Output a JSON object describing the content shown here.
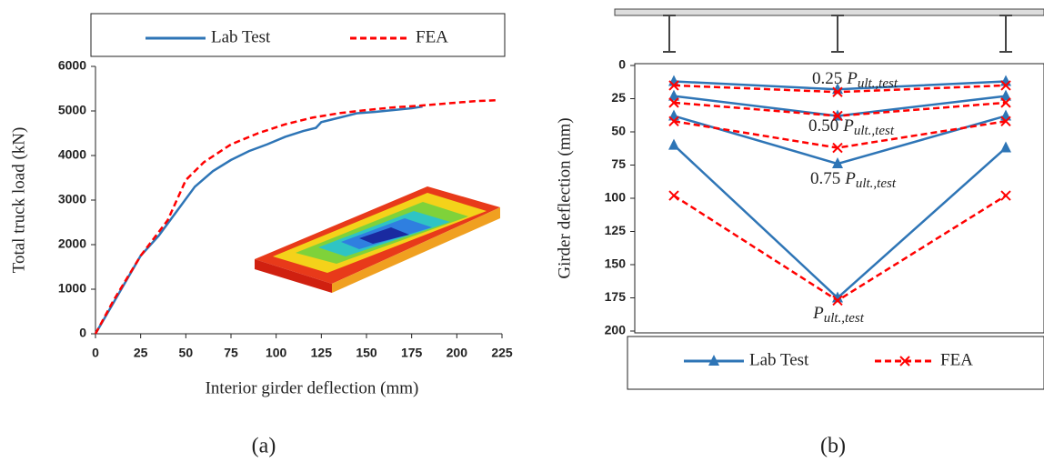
{
  "chart_data": [
    {
      "type": "line",
      "caption": "(a)",
      "xlabel": "Interior girder deflection (mm)",
      "ylabel": "Total truck load (kN)",
      "xlim": [
        0,
        225
      ],
      "xticks": [
        0,
        25,
        50,
        75,
        100,
        125,
        150,
        175,
        200,
        225
      ],
      "ylim": [
        0,
        6000
      ],
      "yticks": [
        0,
        1000,
        2000,
        3000,
        4000,
        5000,
        6000
      ],
      "legend": "top",
      "series": [
        {
          "name": "Lab Test",
          "color": "#2e75b6",
          "dash": false,
          "x": [
            0,
            10,
            20,
            25,
            35,
            45,
            55,
            65,
            75,
            85,
            95,
            105,
            115,
            122,
            125,
            135,
            145,
            155,
            165,
            175,
            181
          ],
          "values": [
            0,
            700,
            1400,
            1750,
            2200,
            2750,
            3300,
            3650,
            3900,
            4100,
            4250,
            4420,
            4550,
            4620,
            4750,
            4850,
            4950,
            4980,
            5020,
            5060,
            5100
          ]
        },
        {
          "name": "FEA",
          "color": "#ff0000",
          "dash": true,
          "x": [
            0,
            10,
            25,
            40,
            50,
            60,
            75,
            90,
            105,
            120,
            135,
            150,
            165,
            180,
            195,
            210,
            222
          ],
          "values": [
            0,
            750,
            1750,
            2550,
            3450,
            3850,
            4250,
            4500,
            4700,
            4850,
            4950,
            5020,
            5080,
            5120,
            5170,
            5220,
            5240
          ]
        }
      ]
    },
    {
      "type": "line",
      "caption": "(b)",
      "ylabel": "Girder deflection (mm)",
      "categories": [
        null,
        null,
        null
      ],
      "ylim": [
        0,
        200
      ],
      "y_inverted": true,
      "yticks": [
        0,
        25,
        50,
        75,
        100,
        125,
        150,
        175,
        200
      ],
      "legend": "bottom",
      "series": [
        {
          "name": "Lab Test",
          "color": "#2e75b6",
          "dash": false,
          "marker": "triangle",
          "values": [
            [
              12,
              18,
              12
            ],
            [
              23,
              38,
              23
            ],
            [
              38,
              74,
              38
            ],
            [
              60,
              175,
              62
            ]
          ]
        },
        {
          "name": "FEA",
          "color": "#ff0000",
          "dash": true,
          "marker": "x",
          "values": [
            [
              15,
              20,
              15
            ],
            [
              28,
              38,
              28
            ],
            [
              42,
              62,
              42
            ],
            [
              98,
              177,
              98
            ]
          ]
        }
      ],
      "annotations": [
        {
          "coef": "0.25",
          "symbol": "P",
          "subscript": "ult.,test"
        },
        {
          "coef": "0.50",
          "symbol": "P",
          "subscript": "ult.,test"
        },
        {
          "coef": "0.75",
          "symbol": "P",
          "subscript": "ult.,test"
        },
        {
          "symbol": "P",
          "subscript": "ult.,test"
        }
      ]
    }
  ]
}
